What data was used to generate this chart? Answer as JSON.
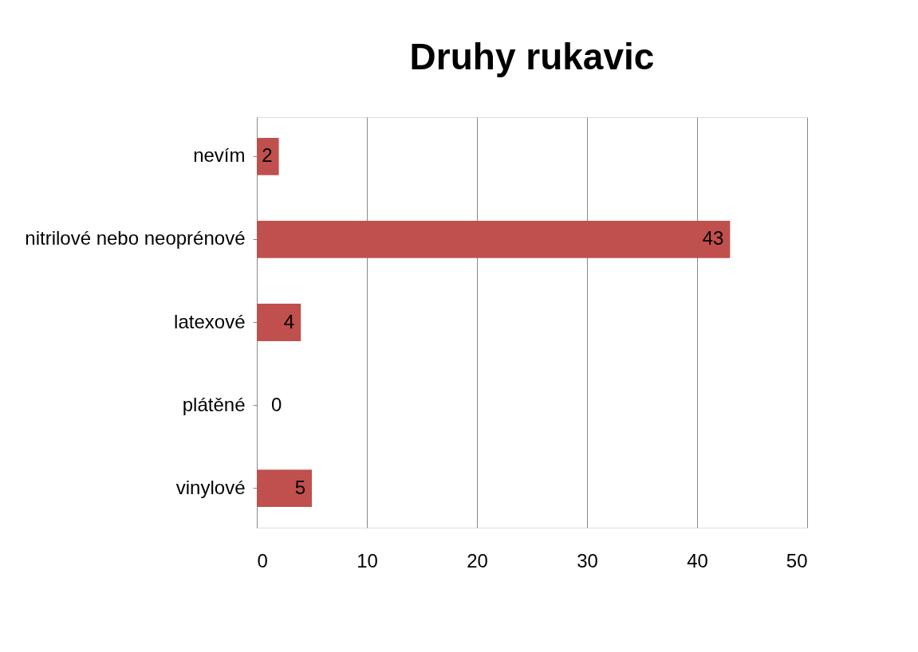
{
  "chart_data": {
    "type": "bar",
    "orientation": "horizontal",
    "title": "Druhy rukavic",
    "categories": [
      "nevím",
      "nitrilové nebo neoprénové",
      "latexové",
      "plátěné",
      "vinylové"
    ],
    "values": [
      2,
      43,
      4,
      0,
      5
    ],
    "color": "#c0504d",
    "xlim": [
      0,
      50
    ],
    "xticks": [
      0,
      10,
      20,
      30,
      40,
      50
    ],
    "grid": "x",
    "data_labels": true
  }
}
